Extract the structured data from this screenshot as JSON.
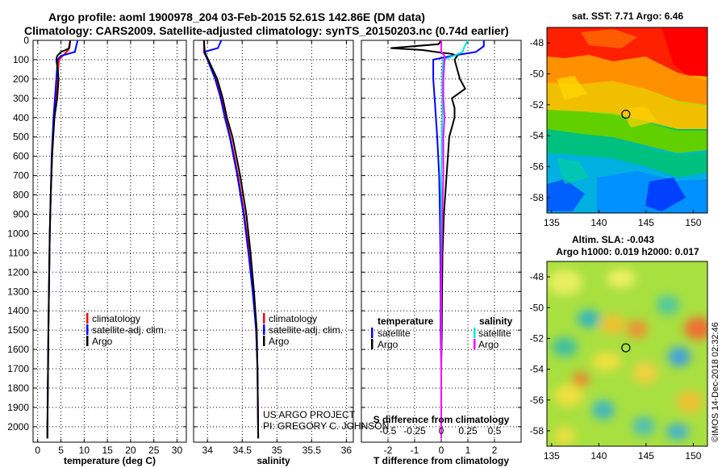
{
  "header": {
    "line1": "Argo profile: aoml 1900978_204 03-Feb-2015 52.61S 142.86E (DM data)",
    "line2": "Climatology: CARS2009. Satellite-adjusted climatology: synTS_20150203.nc (0.74d earlier)"
  },
  "credit": {
    "line1": "US ARGO PROJECT",
    "line2": "PI: GREGORY C. JOHNSON"
  },
  "imos_stamp": "©IMOS 14-Dec-2018 02:32:46",
  "colors": {
    "climatology": "#ff0000",
    "satellite": "#0000ff",
    "argo": "#000000",
    "sal_satellite": "#00e5e5",
    "sal_argo": "#ff00ff"
  },
  "chart_data": [
    {
      "type": "line",
      "title": "",
      "xlabel": "temperature (deg C)",
      "ylabel": "",
      "xlim": [
        -1,
        32
      ],
      "ylim": [
        2080,
        0
      ],
      "x_ticks": [
        0,
        5,
        10,
        15,
        20,
        25,
        30
      ],
      "y_ticks": [
        0,
        100,
        200,
        300,
        400,
        500,
        600,
        700,
        800,
        900,
        1000,
        1100,
        1200,
        1300,
        1400,
        1500,
        1600,
        1700,
        1800,
        1900,
        2000
      ],
      "grid": true,
      "legend": [
        {
          "name": "climatology",
          "color": "#ff0000"
        },
        {
          "name": "satellite-adj. clim.",
          "color": "#0000ff"
        },
        {
          "name": "Argo",
          "color": "#000000"
        }
      ],
      "series": [
        {
          "name": "climatology",
          "color": "#ff0000",
          "depth": [
            0,
            50,
            100,
            200,
            300,
            400,
            600,
            800,
            1000,
            1500,
            2000,
            2060
          ],
          "values": [
            7.0,
            6.6,
            4.6,
            4.2,
            3.9,
            3.5,
            3.1,
            2.8,
            2.6,
            2.3,
            2.1,
            2.1
          ]
        },
        {
          "name": "satellite-adj. clim.",
          "color": "#0000ff",
          "depth": [
            0,
            30,
            60,
            80,
            100,
            200,
            300,
            400,
            600,
            800,
            1000,
            1500,
            2000,
            2060
          ],
          "values": [
            8.6,
            8.3,
            8.0,
            5.0,
            4.3,
            4.0,
            3.7,
            3.4,
            3.0,
            2.8,
            2.6,
            2.3,
            2.1,
            2.1
          ]
        },
        {
          "name": "Argo",
          "color": "#000000",
          "depth": [
            0,
            20,
            40,
            50,
            60,
            80,
            100,
            150,
            200,
            300,
            400,
            600,
            800,
            1000,
            1500,
            2000,
            2060
          ],
          "values": [
            7.0,
            6.9,
            6.8,
            6.0,
            5.0,
            4.2,
            4.0,
            4.3,
            4.5,
            4.2,
            3.6,
            3.1,
            2.8,
            2.6,
            2.3,
            2.1,
            2.1
          ]
        }
      ]
    },
    {
      "type": "line",
      "title": "",
      "xlabel": "salinity",
      "ylabel": "",
      "xlim": [
        33.8,
        36.1
      ],
      "ylim": [
        2080,
        0
      ],
      "x_ticks": [
        34,
        34.5,
        35,
        35.5,
        36
      ],
      "x_tick_labels": [
        "34",
        "34.5",
        "35",
        "35.5",
        "36"
      ],
      "grid": true,
      "legend": [
        {
          "name": "climatology",
          "color": "#ff0000"
        },
        {
          "name": "satellite-adj. clim.",
          "color": "#0000ff"
        },
        {
          "name": "Argo",
          "color": "#000000"
        }
      ],
      "series": [
        {
          "name": "climatology",
          "color": "#ff0000",
          "depth": [
            0,
            60,
            100,
            200,
            300,
            400,
            500,
            700,
            900,
            1100,
            1300,
            1500,
            1700,
            2060
          ],
          "values": [
            33.95,
            33.95,
            34.0,
            34.12,
            34.2,
            34.26,
            34.33,
            34.44,
            34.53,
            34.6,
            34.66,
            34.7,
            34.72,
            34.73
          ]
        },
        {
          "name": "satellite-adj. clim.",
          "color": "#0000ff",
          "depth": [
            0,
            40,
            60,
            100,
            200,
            300,
            400,
            500,
            700,
            900,
            1100,
            1300,
            1500,
            1700,
            2060
          ],
          "values": [
            34.2,
            34.15,
            33.95,
            34.0,
            34.11,
            34.19,
            34.25,
            34.32,
            34.43,
            34.52,
            34.59,
            34.65,
            34.7,
            34.72,
            34.73
          ]
        },
        {
          "name": "Argo",
          "color": "#000000",
          "depth": [
            0,
            60,
            100,
            200,
            300,
            400,
            500,
            700,
            900,
            1100,
            1300,
            1500,
            1700,
            2060
          ],
          "values": [
            33.95,
            33.96,
            34.01,
            34.14,
            34.22,
            34.28,
            34.36,
            34.47,
            34.56,
            34.62,
            34.67,
            34.71,
            34.72,
            34.73
          ]
        }
      ]
    },
    {
      "type": "line",
      "title": "",
      "xlabel": "T difference from climatology",
      "xlabel2": "S difference from climatology",
      "ylabel": "",
      "xlim": [
        -3,
        3
      ],
      "ylim": [
        2080,
        0
      ],
      "x_ticks": [
        -2,
        -1,
        0,
        1,
        2
      ],
      "x2_ticks": [
        -0.5,
        -0.25,
        0,
        0.25,
        0.5
      ],
      "x2_tick_labels": [
        "-0.5",
        "-0.25",
        "0",
        "0.25",
        "0.5"
      ],
      "grid": true,
      "legend_left": {
        "title": "temperature",
        "items": [
          {
            "name": "satellite",
            "color": "#0000ff"
          },
          {
            "name": "Argo",
            "color": "#000000"
          }
        ]
      },
      "legend_right": {
        "title": "salinity",
        "items": [
          {
            "name": "satellite",
            "color": "#00e5e5"
          },
          {
            "name": "Argo",
            "color": "#ff00ff"
          }
        ]
      },
      "series": [
        {
          "name": "temperature satellite",
          "color": "#0000ff",
          "depth": [
            0,
            30,
            60,
            80,
            100,
            200,
            300,
            400,
            500,
            700,
            900,
            1100,
            1300,
            1500,
            1700,
            2060
          ],
          "values": [
            1.6,
            1.6,
            1.3,
            0.4,
            -0.3,
            -0.3,
            -0.25,
            -0.2,
            -0.15,
            -0.08,
            -0.05,
            -0.03,
            -0.02,
            -0.02,
            0,
            0
          ]
        },
        {
          "name": "temperature Argo",
          "color": "#000000",
          "depth": [
            0,
            20,
            40,
            50,
            60,
            70,
            80,
            100,
            150,
            200,
            250,
            300,
            350,
            400,
            500,
            700,
            900,
            1100,
            1300,
            1500,
            1700,
            2060
          ],
          "values": [
            0,
            -0.1,
            -1.9,
            -0.7,
            -0.2,
            0.4,
            0.6,
            0.5,
            0.6,
            0.7,
            0.9,
            0.4,
            0.5,
            0.5,
            0.3,
            0.2,
            0.1,
            0.05,
            0.03,
            0.02,
            0,
            0
          ]
        },
        {
          "name": "salinity satellite",
          "color": "#00e5e5",
          "depth": [
            0,
            30,
            60,
            80,
            100,
            150,
            200,
            400,
            700,
            1000,
            1500,
            2060
          ],
          "values": [
            0.25,
            0.22,
            0.2,
            0.12,
            0.02,
            0.01,
            0.01,
            0.01,
            0,
            0,
            0,
            0
          ]
        },
        {
          "name": "salinity Argo",
          "color": "#ff00ff",
          "depth": [
            0,
            30,
            60,
            80,
            100,
            200,
            300,
            400,
            500,
            700,
            900,
            1200,
            1500,
            2060
          ],
          "values": [
            0,
            0,
            0,
            0.03,
            0.03,
            0.02,
            0.02,
            0.03,
            0.02,
            0.02,
            0.01,
            0,
            0,
            0
          ]
        }
      ]
    },
    {
      "type": "heatmap",
      "title": "sat. SST: 7.71 Argo: 6.46",
      "xlim": [
        134.5,
        151.5
      ],
      "ylim": [
        -59,
        -47
      ],
      "x_ticks": [
        135,
        140,
        145,
        150
      ],
      "y_ticks": [
        -58,
        -56,
        -54,
        -52,
        -50,
        -48
      ],
      "marker": {
        "lon": 142.86,
        "lat": -52.61
      }
    },
    {
      "type": "heatmap",
      "title": "Altim. SLA: -0.043",
      "subtitle": "Argo h1000: 0.019 h2000: 0.017",
      "xlim": [
        134.5,
        151.5
      ],
      "ylim": [
        -59,
        -47
      ],
      "x_ticks": [
        135,
        140,
        145,
        150
      ],
      "y_ticks": [
        -58,
        -56,
        -54,
        -52,
        -50,
        -48
      ],
      "marker": {
        "lon": 142.86,
        "lat": -52.61
      }
    }
  ]
}
